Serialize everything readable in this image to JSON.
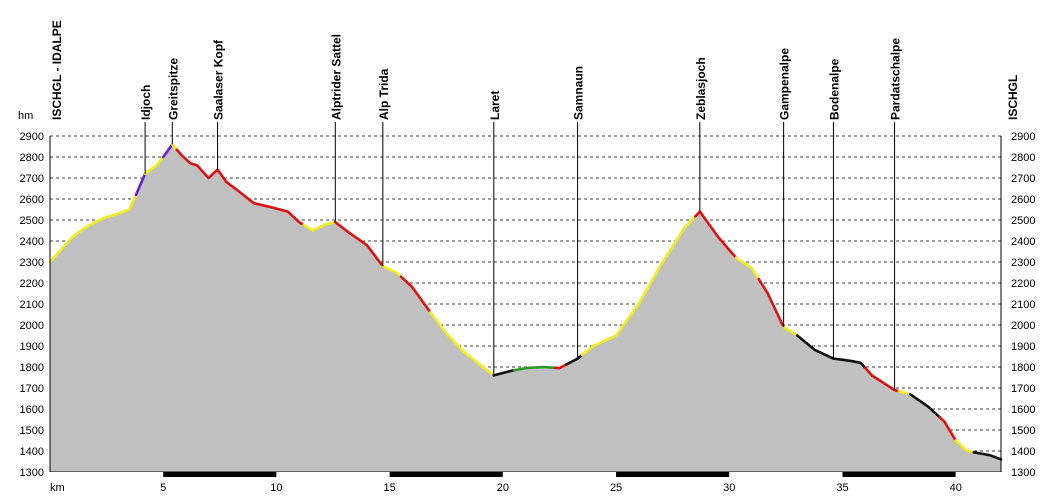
{
  "chart_data": {
    "type": "area",
    "ylabel": "hm",
    "xlabel": "km",
    "xlim": [
      0,
      42
    ],
    "ylim": [
      1300,
      2900
    ],
    "y_ticks": [
      1300,
      1400,
      1500,
      1600,
      1700,
      1800,
      1900,
      2000,
      2100,
      2200,
      2300,
      2400,
      2500,
      2600,
      2700,
      2800,
      2900
    ],
    "x_ticks": [
      5,
      10,
      15,
      20,
      25,
      30,
      35,
      40
    ],
    "grid": "horizontal dashed",
    "colors": {
      "fill": "#c0c0c0",
      "easy": "#f2ec1a",
      "medium": "#e01010",
      "hard": "#6a1fd0",
      "flat": "#111111",
      "green": "#2a9a2a"
    },
    "waypoints": [
      {
        "label": "ISCHGL - IDALPE",
        "km": 0
      },
      {
        "label": "Idjoch",
        "km": 4.2
      },
      {
        "label": "Greitspitze",
        "km": 5.4
      },
      {
        "label": "Saalaser Kopf",
        "km": 7.4
      },
      {
        "label": "Alptrider Sattel",
        "km": 12.6
      },
      {
        "label": "Alp Trida",
        "km": 14.7
      },
      {
        "label": "Laret",
        "km": 19.6
      },
      {
        "label": "Samnaun",
        "km": 23.3
      },
      {
        "label": "Zeblasjoch",
        "km": 28.7
      },
      {
        "label": "Gampenalpe",
        "km": 32.4
      },
      {
        "label": "Bodenalpe",
        "km": 34.6
      },
      {
        "label": "Pardatschalpe",
        "km": 37.3
      },
      {
        "label": "ISCHGL",
        "km": 42
      }
    ],
    "profile": [
      {
        "x": 0,
        "y": 2300
      },
      {
        "x": 0.5,
        "y": 2360
      },
      {
        "x": 1,
        "y": 2420
      },
      {
        "x": 1.5,
        "y": 2460
      },
      {
        "x": 2,
        "y": 2490
      },
      {
        "x": 2.4,
        "y": 2510
      },
      {
        "x": 3,
        "y": 2530
      },
      {
        "x": 3.5,
        "y": 2550
      },
      {
        "x": 3.8,
        "y": 2620
      },
      {
        "x": 4.2,
        "y": 2720
      },
      {
        "x": 4.7,
        "y": 2760
      },
      {
        "x": 5.0,
        "y": 2800
      },
      {
        "x": 5.4,
        "y": 2860
      },
      {
        "x": 5.8,
        "y": 2810
      },
      {
        "x": 6.2,
        "y": 2770
      },
      {
        "x": 6.5,
        "y": 2760
      },
      {
        "x": 7.0,
        "y": 2700
      },
      {
        "x": 7.4,
        "y": 2740
      },
      {
        "x": 7.8,
        "y": 2680
      },
      {
        "x": 8.3,
        "y": 2640
      },
      {
        "x": 9.0,
        "y": 2580
      },
      {
        "x": 9.8,
        "y": 2560
      },
      {
        "x": 10.5,
        "y": 2540
      },
      {
        "x": 11.0,
        "y": 2490
      },
      {
        "x": 11.6,
        "y": 2450
      },
      {
        "x": 12.2,
        "y": 2480
      },
      {
        "x": 12.6,
        "y": 2490
      },
      {
        "x": 13.2,
        "y": 2440
      },
      {
        "x": 14.0,
        "y": 2380
      },
      {
        "x": 14.7,
        "y": 2280
      },
      {
        "x": 15.3,
        "y": 2250
      },
      {
        "x": 16.0,
        "y": 2180
      },
      {
        "x": 16.8,
        "y": 2060
      },
      {
        "x": 17.5,
        "y": 1960
      },
      {
        "x": 18.3,
        "y": 1870
      },
      {
        "x": 19.0,
        "y": 1810
      },
      {
        "x": 19.6,
        "y": 1760
      },
      {
        "x": 20.3,
        "y": 1780
      },
      {
        "x": 21.0,
        "y": 1795
      },
      {
        "x": 21.8,
        "y": 1800
      },
      {
        "x": 22.5,
        "y": 1795
      },
      {
        "x": 23.3,
        "y": 1840
      },
      {
        "x": 24.0,
        "y": 1900
      },
      {
        "x": 25.0,
        "y": 1950
      },
      {
        "x": 26.0,
        "y": 2100
      },
      {
        "x": 27.0,
        "y": 2290
      },
      {
        "x": 28.0,
        "y": 2460
      },
      {
        "x": 28.7,
        "y": 2540
      },
      {
        "x": 29.5,
        "y": 2420
      },
      {
        "x": 30.3,
        "y": 2320
      },
      {
        "x": 31.0,
        "y": 2270
      },
      {
        "x": 31.7,
        "y": 2150
      },
      {
        "x": 32.4,
        "y": 1990
      },
      {
        "x": 33.0,
        "y": 1950
      },
      {
        "x": 33.8,
        "y": 1880
      },
      {
        "x": 34.6,
        "y": 1840
      },
      {
        "x": 35.3,
        "y": 1830
      },
      {
        "x": 35.8,
        "y": 1820
      },
      {
        "x": 36.3,
        "y": 1760
      },
      {
        "x": 37.3,
        "y": 1690
      },
      {
        "x": 38.0,
        "y": 1670
      },
      {
        "x": 38.8,
        "y": 1610
      },
      {
        "x": 39.5,
        "y": 1540
      },
      {
        "x": 40.0,
        "y": 1450
      },
      {
        "x": 40.5,
        "y": 1400
      },
      {
        "x": 41.0,
        "y": 1390
      },
      {
        "x": 41.5,
        "y": 1380
      },
      {
        "x": 42.0,
        "y": 1360
      }
    ],
    "segments": [
      {
        "from": 0,
        "to": 3.8,
        "difficulty": "easy"
      },
      {
        "from": 3.8,
        "to": 4.2,
        "difficulty": "hard"
      },
      {
        "from": 4.2,
        "to": 5.0,
        "difficulty": "easy"
      },
      {
        "from": 5.0,
        "to": 5.4,
        "difficulty": "hard"
      },
      {
        "from": 5.4,
        "to": 5.6,
        "difficulty": "easy"
      },
      {
        "from": 5.6,
        "to": 11.2,
        "difficulty": "medium"
      },
      {
        "from": 11.2,
        "to": 12.6,
        "difficulty": "easy"
      },
      {
        "from": 12.6,
        "to": 14.7,
        "difficulty": "medium"
      },
      {
        "from": 14.7,
        "to": 15.5,
        "difficulty": "easy"
      },
      {
        "from": 15.5,
        "to": 16.8,
        "difficulty": "medium"
      },
      {
        "from": 16.8,
        "to": 19.6,
        "difficulty": "easy"
      },
      {
        "from": 19.6,
        "to": 20.5,
        "difficulty": "flat"
      },
      {
        "from": 20.5,
        "to": 22.3,
        "difficulty": "green"
      },
      {
        "from": 22.3,
        "to": 22.8,
        "difficulty": "medium"
      },
      {
        "from": 22.8,
        "to": 23.5,
        "difficulty": "flat"
      },
      {
        "from": 23.5,
        "to": 28.5,
        "difficulty": "easy"
      },
      {
        "from": 28.5,
        "to": 30.3,
        "difficulty": "medium"
      },
      {
        "from": 30.3,
        "to": 31.3,
        "difficulty": "easy"
      },
      {
        "from": 31.3,
        "to": 32.4,
        "difficulty": "medium"
      },
      {
        "from": 32.4,
        "to": 33.0,
        "difficulty": "easy"
      },
      {
        "from": 33.0,
        "to": 36.0,
        "difficulty": "flat"
      },
      {
        "from": 36.0,
        "to": 37.5,
        "difficulty": "medium"
      },
      {
        "from": 37.5,
        "to": 38.0,
        "difficulty": "easy"
      },
      {
        "from": 38.0,
        "to": 39.3,
        "difficulty": "flat"
      },
      {
        "from": 39.3,
        "to": 40.0,
        "difficulty": "medium"
      },
      {
        "from": 40.0,
        "to": 40.8,
        "difficulty": "easy"
      },
      {
        "from": 40.8,
        "to": 42.0,
        "difficulty": "flat"
      }
    ]
  }
}
